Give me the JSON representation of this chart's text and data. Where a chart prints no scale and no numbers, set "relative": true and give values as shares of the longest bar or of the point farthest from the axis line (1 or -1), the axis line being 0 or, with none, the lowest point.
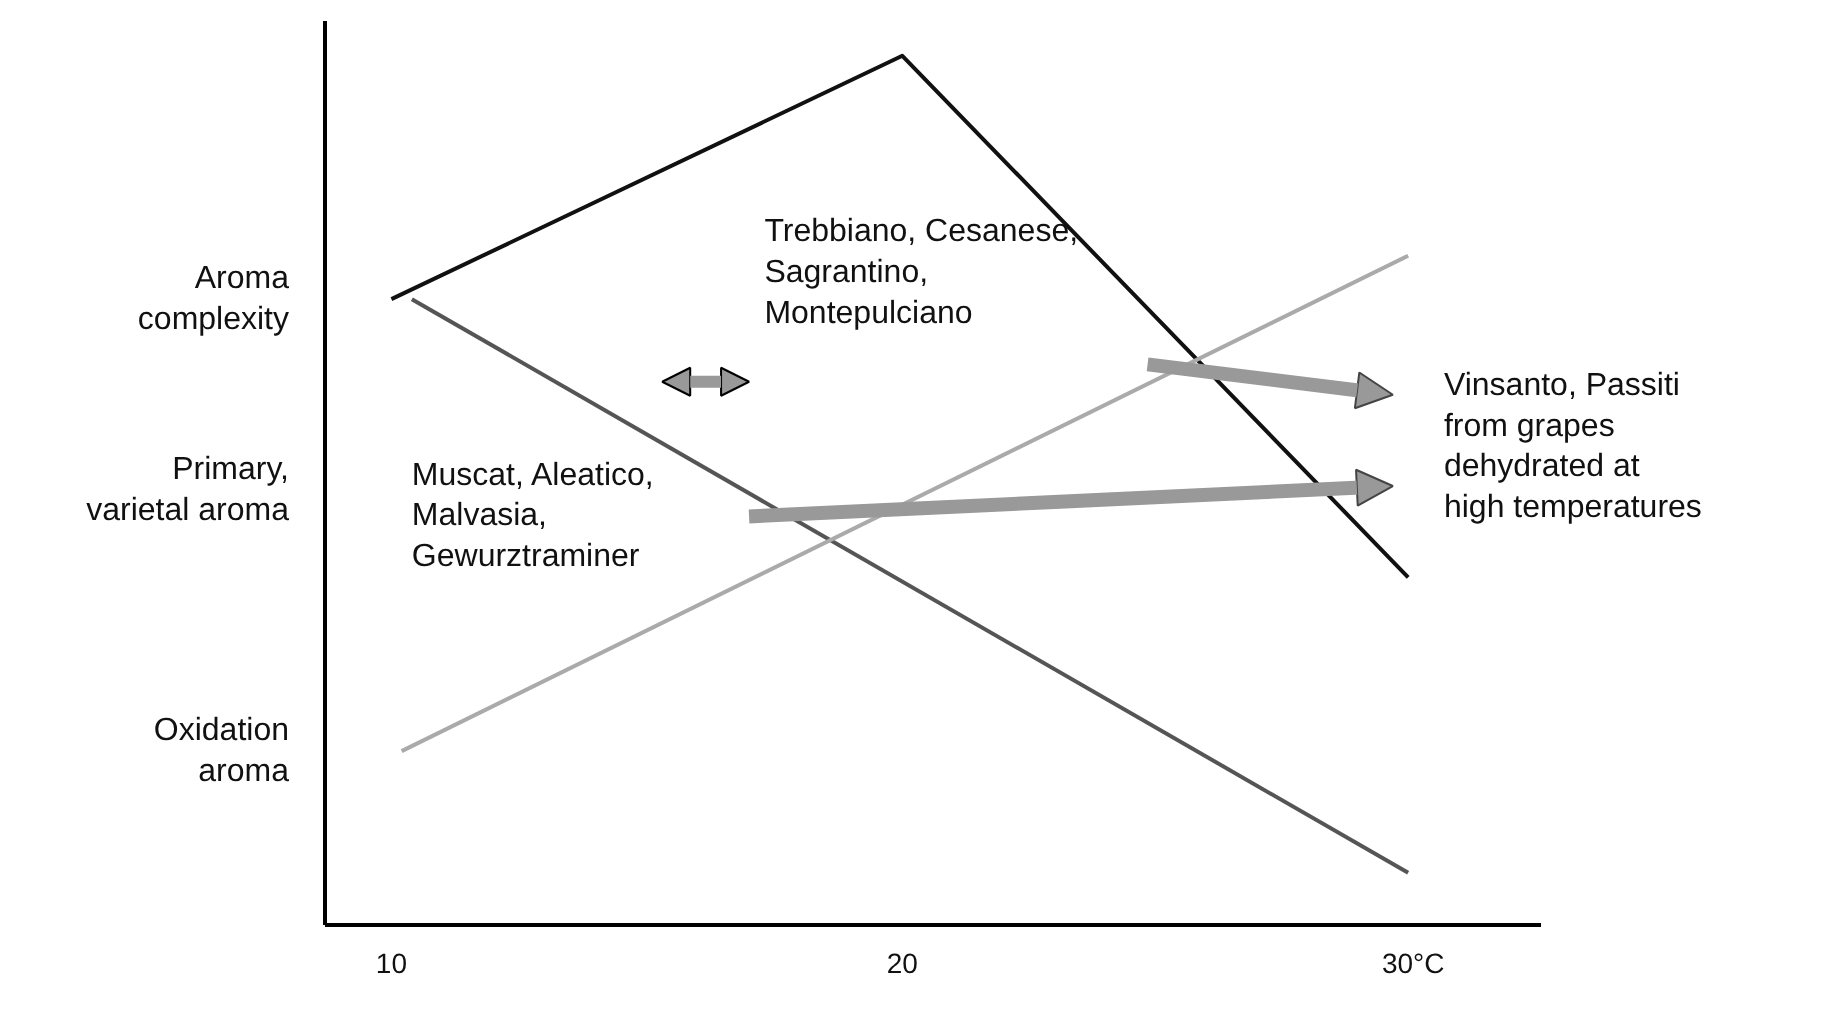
{
  "chart_data": {
    "type": "line",
    "relative": true,
    "xlim": [
      8.7,
      32.5
    ],
    "xticks": [
      10,
      20,
      {
        "value": 30,
        "label": "30°C"
      }
    ],
    "series": [
      {
        "color": "#111111",
        "x": [
          10,
          20,
          29.9
        ],
        "values": [
          0.72,
          1,
          0.4
        ]
      },
      {
        "color": "#555555",
        "x": [
          10.4,
          29.9
        ],
        "values": [
          0.72,
          0.06
        ]
      },
      {
        "color": "#aaaaaa",
        "x": [
          10.2,
          29.9
        ],
        "values": [
          0.2,
          0.77
        ]
      }
    ],
    "annotations": [
      "Trebbiano, Cesanese,\nSagrantino,\nMontepulciano",
      "Muscat, Aleatico,\nMalvasia,\nGewurztraminer",
      "Vinsanto, Passiti\nfrom grapes\ndehydrated at\nhigh temperatures",
      "Aroma\ncomplexity",
      "Primary,\nvarietal aroma",
      "Oxidation\naroma"
    ],
    "grid": false,
    "marker": "none",
    "line_style": "solid"
  }
}
